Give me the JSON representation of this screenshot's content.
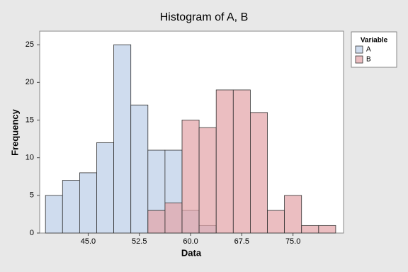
{
  "chart_data": {
    "type": "histogram",
    "title": "Histogram of A, B",
    "x_label": "Data",
    "y_label": "Frequency",
    "legend_title": "Variable",
    "legend_position": "right",
    "bins": [
      38.75,
      41.25,
      43.75,
      46.25,
      48.75,
      51.25,
      53.75,
      56.25,
      58.75,
      61.25,
      63.75,
      66.25,
      68.75,
      71.25,
      73.75,
      76.25,
      78.75,
      81.25
    ],
    "series": [
      {
        "name": "A",
        "color": "#cfdcee",
        "values": [
          5,
          7,
          8,
          12,
          25,
          17,
          11,
          11,
          3,
          1,
          0,
          0,
          0,
          0,
          0,
          0,
          0
        ]
      },
      {
        "name": "B",
        "color": "#e3a3a6",
        "values": [
          0,
          0,
          0,
          0,
          0,
          0,
          3,
          4,
          15,
          14,
          19,
          19,
          16,
          3,
          5,
          1,
          1
        ]
      }
    ],
    "xlim": [
      37.9,
      82.4
    ],
    "ylim": [
      0,
      26.8
    ],
    "xticks": [
      {
        "value": 45,
        "label": "45.0"
      },
      {
        "value": 52.5,
        "label": "52.5"
      },
      {
        "value": 60,
        "label": "60.0"
      },
      {
        "value": 67.5,
        "label": "67.5"
      },
      {
        "value": 75,
        "label": "75.0"
      }
    ],
    "yticks": [
      0,
      5,
      10,
      15,
      20,
      25
    ]
  }
}
